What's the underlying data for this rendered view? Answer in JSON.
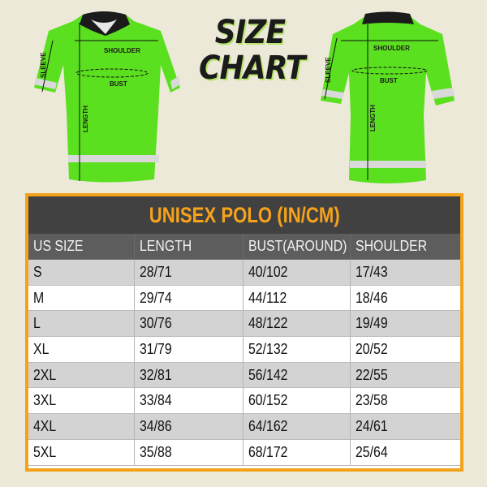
{
  "title": {
    "line1": "SIZE",
    "line2": "CHART"
  },
  "front_shirt": {
    "labels": {
      "shoulder": "SHOULDER",
      "bust": "BUST",
      "sleeve": "SLEEVE",
      "length": "LENGTH"
    }
  },
  "back_shirt": {
    "labels": {
      "shoulder": "SHOULDER",
      "bust": "BUST",
      "sleeve": "SLEEVE",
      "length": "LENGTH"
    }
  },
  "colors": {
    "shirt": "#5be01f",
    "accent": "#f5a21b",
    "title_band": "#414141",
    "header_band": "#5d5d5d",
    "background": "#ece9d8"
  },
  "table": {
    "title": "UNISEX POLO (IN/CM)",
    "headers": [
      "US SIZE",
      "LENGTH",
      "BUST(AROUND)",
      "SHOULDER"
    ],
    "rows": [
      [
        "S",
        "28/71",
        "40/102",
        "17/43"
      ],
      [
        "M",
        "29/74",
        "44/112",
        "18/46"
      ],
      [
        "L",
        "30/76",
        "48/122",
        "19/49"
      ],
      [
        "XL",
        "31/79",
        "52/132",
        "20/52"
      ],
      [
        "2XL",
        "32/81",
        "56/142",
        "22/55"
      ],
      [
        "3XL",
        "33/84",
        "60/152",
        "23/58"
      ],
      [
        "4XL",
        "34/86",
        "64/162",
        "24/61"
      ],
      [
        "5XL",
        "35/88",
        "68/172",
        "25/64"
      ]
    ]
  }
}
